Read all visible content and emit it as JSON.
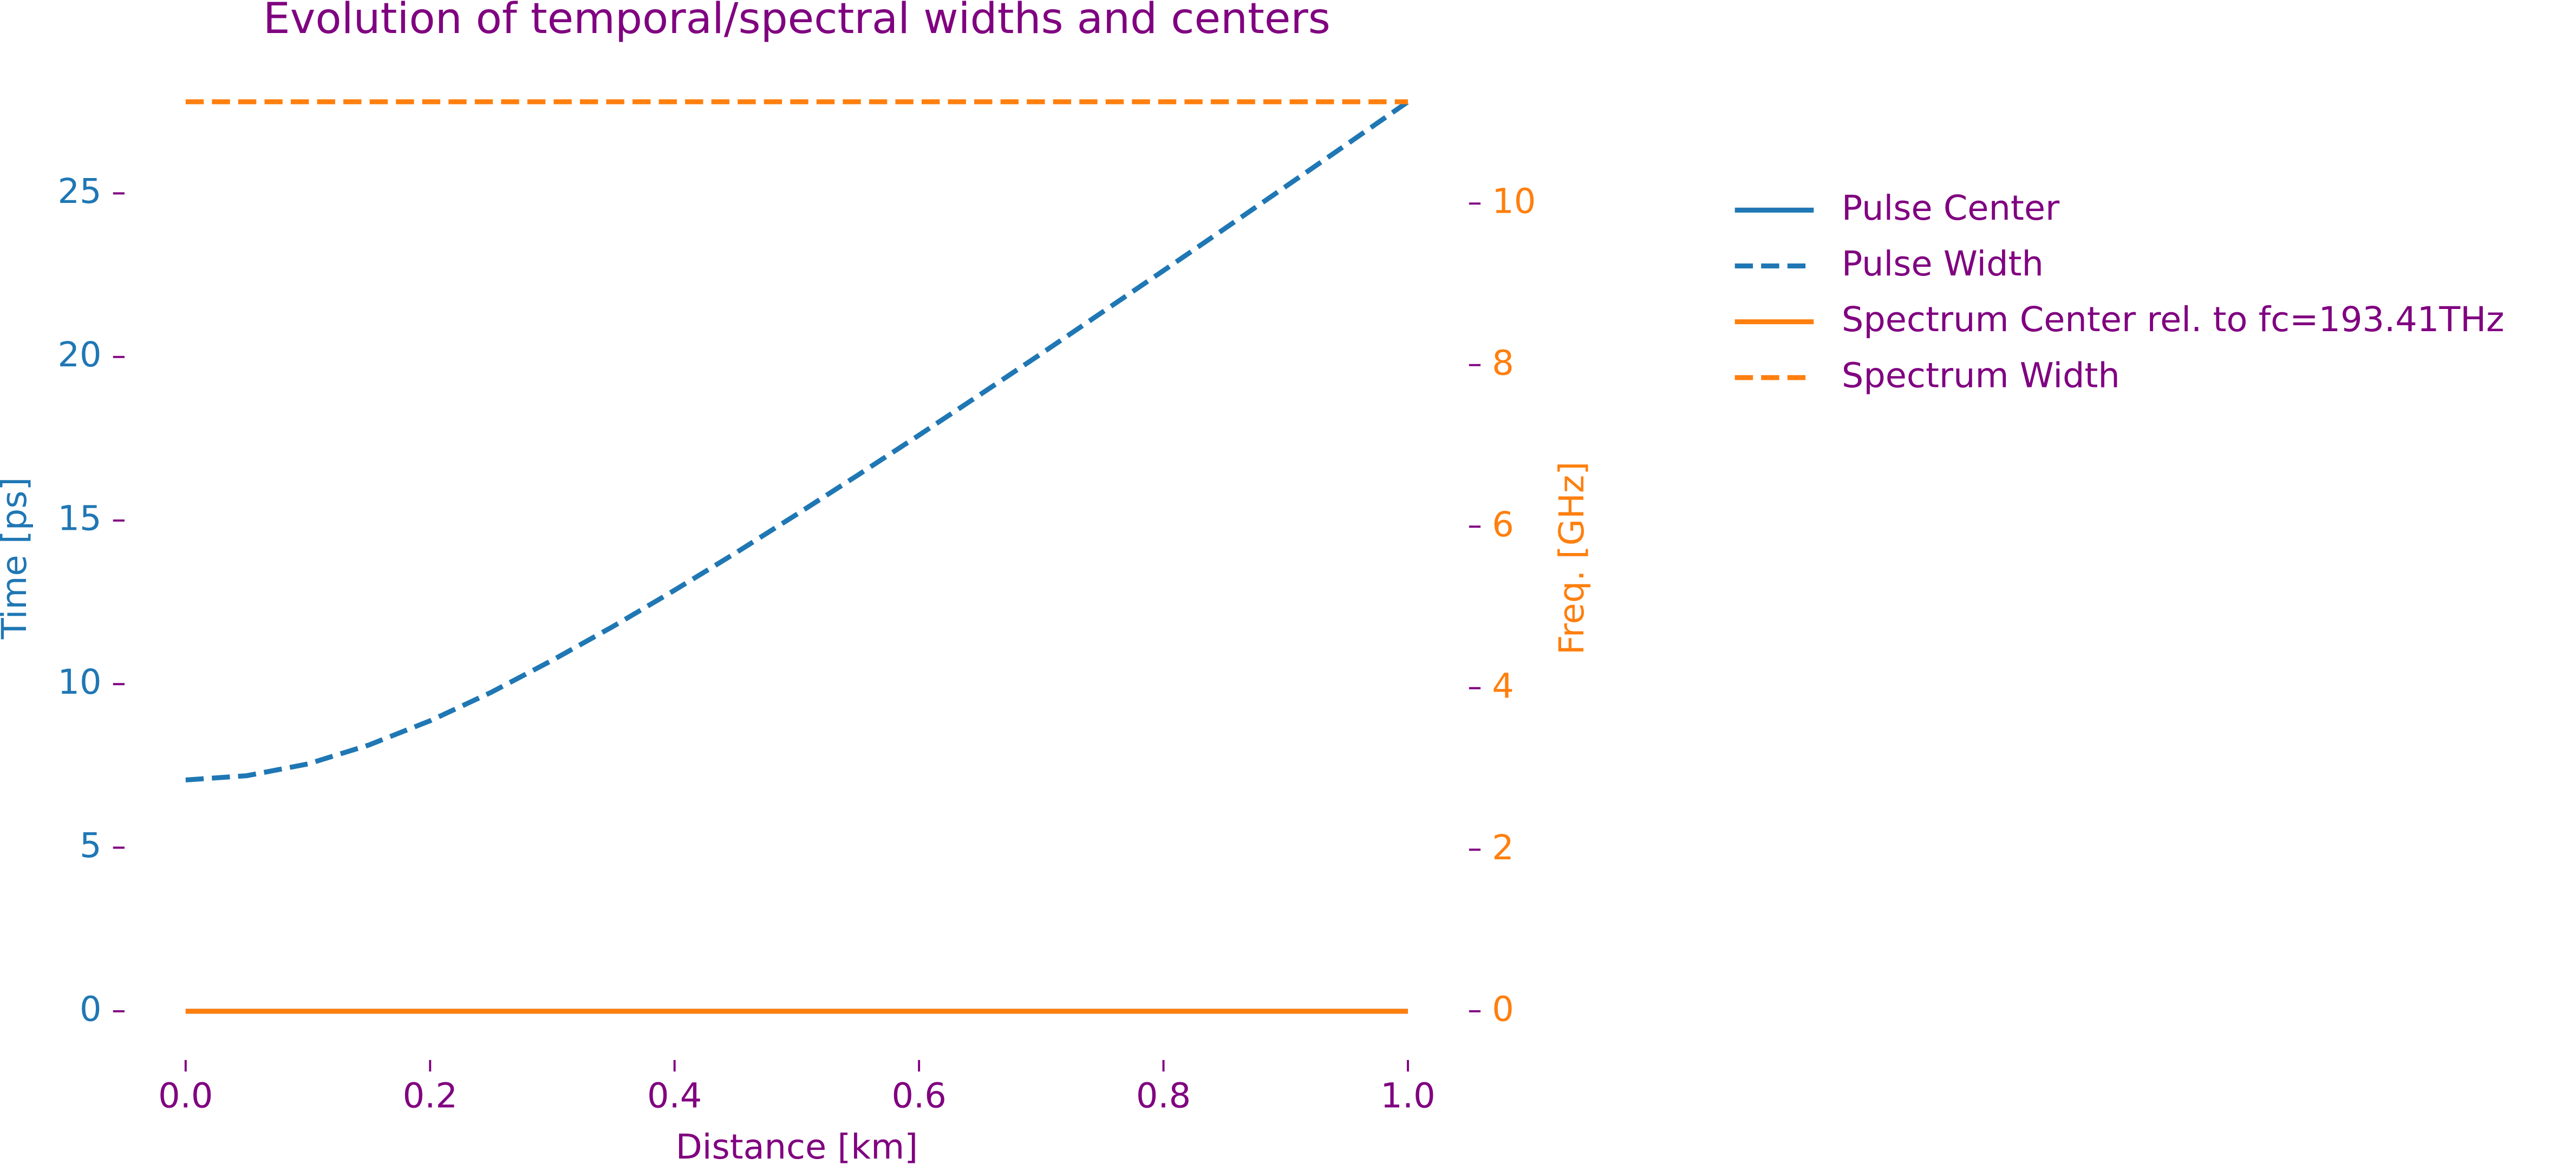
{
  "chart_data": {
    "type": "line",
    "title": "Evolution of temporal/spectral widths and centers",
    "xlabel": "Distance [km]",
    "ylabel": "Time [ps]",
    "y2label": "Freq. [GHz]",
    "x": [
      0,
      0.05,
      0.1,
      0.15,
      0.2,
      0.25,
      0.3,
      0.35,
      0.4,
      0.45,
      0.5,
      0.55,
      0.6,
      0.65,
      0.7,
      0.75,
      0.8,
      0.85,
      0.9,
      0.95,
      1.0
    ],
    "series": [
      {
        "name": "Pulse Center",
        "color": "#1f77b4",
        "linestyle": "solid",
        "values": [
          0,
          0,
          0,
          0,
          0,
          0,
          0,
          0,
          0,
          0,
          0,
          0,
          0,
          0,
          0,
          0,
          0,
          0,
          0,
          0,
          0
        ]
      },
      {
        "name": "Pulse Width",
        "color": "#1f77b4",
        "linestyle": "dashed",
        "values": [
          7.07,
          7.2,
          7.56,
          8.14,
          8.88,
          9.75,
          10.73,
          11.77,
          12.87,
          14.01,
          15.19,
          16.39,
          17.61,
          18.85,
          20.1,
          21.37,
          22.64,
          23.92,
          25.21,
          26.5,
          27.8
        ]
      },
      {
        "name": "Spectrum Center rel. to fc=193.41THz",
        "color": "#ff7f0e",
        "linestyle": "solid",
        "axis": "y2",
        "values": [
          0,
          0,
          0,
          0,
          0,
          0,
          0,
          0,
          0,
          0,
          0,
          0,
          0,
          0,
          0,
          0,
          0,
          0,
          0,
          0,
          0
        ]
      },
      {
        "name": "Spectrum Width",
        "color": "#ff7f0e",
        "linestyle": "dashed",
        "axis": "y2",
        "values": [
          11.26,
          11.26,
          11.26,
          11.26,
          11.26,
          11.26,
          11.26,
          11.26,
          11.26,
          11.26,
          11.26,
          11.26,
          11.26,
          11.26,
          11.26,
          11.26,
          11.26,
          11.26,
          11.26,
          11.26,
          11.26
        ]
      }
    ],
    "xlim": [
      -0.05,
      1.05
    ],
    "xticks": [
      {
        "value": 0,
        "label": "0.0"
      },
      {
        "value": 0.2,
        "label": "0.2"
      },
      {
        "value": 0.4,
        "label": "0.4"
      },
      {
        "value": 0.6,
        "label": "0.6"
      },
      {
        "value": 0.8,
        "label": "0.8"
      },
      {
        "value": 1,
        "label": "1.0"
      }
    ],
    "ylim": [
      -1.39,
      29.19
    ],
    "yticks": [
      0,
      5,
      10,
      15,
      20,
      25
    ],
    "y2lim": [
      -0.563,
      11.823
    ],
    "y2ticks": [
      0,
      2,
      4,
      6,
      8,
      10
    ],
    "ylabel_color": "#1f77b4",
    "y2label_color": "#ff7f0e",
    "text_color": "#800080",
    "legend": "outside-right",
    "grid": false
  }
}
